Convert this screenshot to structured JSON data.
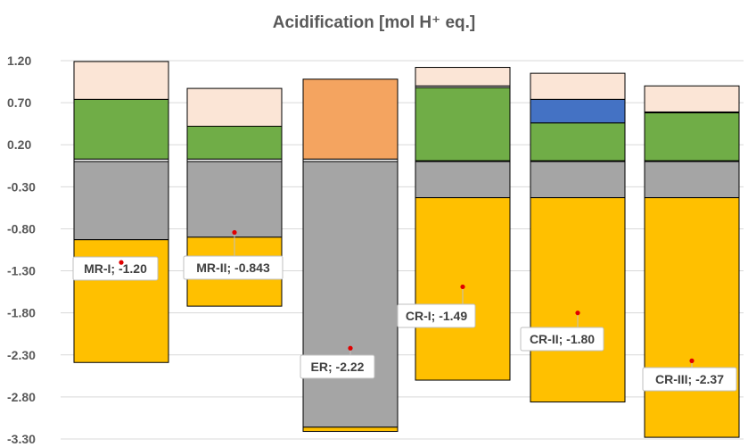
{
  "chart_data": {
    "type": "bar",
    "subtype": "stacked",
    "title": "Acidification [mol H⁺ eq.]",
    "xlabel": "",
    "ylabel": "",
    "ylim": [
      -3.3,
      1.2
    ],
    "yticks": [
      "1.20",
      "0.70",
      "0.20",
      "-0.30",
      "-0.80",
      "-1.30",
      "-1.80",
      "-2.30",
      "-2.80",
      "-3.30"
    ],
    "ytick_values": [
      1.2,
      0.7,
      0.2,
      -0.3,
      -0.8,
      -1.3,
      -1.8,
      -2.3,
      -2.8,
      -3.3
    ],
    "grid": true,
    "legend": "none",
    "categories": [
      "MR-I",
      "MR-II",
      "ER",
      "CR-I",
      "CR-II",
      "CR-III"
    ],
    "bars": [
      {
        "category": "MR-I",
        "total_label": "MR-I; -1.20",
        "segments": [
          {
            "y0": 0.0,
            "y1": 0.03,
            "color": "#ffffff"
          },
          {
            "y0": 0.03,
            "y1": 0.74,
            "color": "#70ad47"
          },
          {
            "y0": 0.74,
            "y1": 1.19,
            "color": "#fbe5d6"
          },
          {
            "y0": 0.0,
            "y1": -0.93,
            "color": "#a5a5a5"
          },
          {
            "y0": -0.93,
            "y1": -2.39,
            "color": "#ffc000"
          }
        ]
      },
      {
        "category": "MR-II",
        "total_label": "MR-II; -0.843",
        "segments": [
          {
            "y0": 0.0,
            "y1": 0.03,
            "color": "#ffffff"
          },
          {
            "y0": 0.03,
            "y1": 0.42,
            "color": "#70ad47"
          },
          {
            "y0": 0.42,
            "y1": 0.87,
            "color": "#fbe5d6"
          },
          {
            "y0": 0.0,
            "y1": -0.9,
            "color": "#a5a5a5"
          },
          {
            "y0": -0.9,
            "y1": -1.72,
            "color": "#ffc000"
          }
        ]
      },
      {
        "category": "ER",
        "total_label": "ER; -2.22",
        "segments": [
          {
            "y0": 0.0,
            "y1": 0.03,
            "color": "#ffffff"
          },
          {
            "y0": 0.03,
            "y1": 0.98,
            "color": "#f4a460"
          },
          {
            "y0": 0.0,
            "y1": -3.16,
            "color": "#a5a5a5"
          },
          {
            "y0": -3.16,
            "y1": -3.21,
            "color": "#ffc000"
          }
        ]
      },
      {
        "category": "CR-I",
        "total_label": "CR-I; -1.49",
        "segments": [
          {
            "y0": 0.0,
            "y1": 0.01,
            "color": "#ffffff"
          },
          {
            "y0": 0.01,
            "y1": 0.88,
            "color": "#70ad47"
          },
          {
            "y0": 0.88,
            "y1": 0.9,
            "color": "#ffffff"
          },
          {
            "y0": 0.9,
            "y1": 1.12,
            "color": "#fbe5d6"
          },
          {
            "y0": 0.0,
            "y1": -0.43,
            "color": "#a5a5a5"
          },
          {
            "y0": -0.43,
            "y1": -2.6,
            "color": "#ffc000"
          }
        ]
      },
      {
        "category": "CR-II",
        "total_label": "CR-II; -1.80",
        "segments": [
          {
            "y0": 0.0,
            "y1": 0.01,
            "color": "#ffffff"
          },
          {
            "y0": 0.01,
            "y1": 0.46,
            "color": "#70ad47"
          },
          {
            "y0": 0.46,
            "y1": 0.74,
            "color": "#4472c4"
          },
          {
            "y0": 0.74,
            "y1": 1.05,
            "color": "#fbe5d6"
          },
          {
            "y0": 0.0,
            "y1": -0.43,
            "color": "#a5a5a5"
          },
          {
            "y0": -0.43,
            "y1": -2.86,
            "color": "#ffc000"
          }
        ]
      },
      {
        "category": "CR-III",
        "total_label": "CR-III; -2.37",
        "segments": [
          {
            "y0": 0.0,
            "y1": 0.01,
            "color": "#ffffff"
          },
          {
            "y0": 0.01,
            "y1": 0.58,
            "color": "#70ad47"
          },
          {
            "y0": 0.58,
            "y1": 0.59,
            "color": "#ffffff"
          },
          {
            "y0": 0.59,
            "y1": 0.9,
            "color": "#fbe5d6"
          },
          {
            "y0": 0.0,
            "y1": -0.43,
            "color": "#a5a5a5"
          },
          {
            "y0": -0.43,
            "y1": -3.28,
            "color": "#ffc000"
          }
        ]
      }
    ],
    "net_points": [
      {
        "category": "MR-I",
        "value": -1.2
      },
      {
        "category": "MR-II",
        "value": -0.843
      },
      {
        "category": "ER",
        "value": -2.22
      },
      {
        "category": "CR-I",
        "value": -1.49
      },
      {
        "category": "CR-II",
        "value": -1.8
      },
      {
        "category": "CR-III",
        "value": -2.37
      }
    ],
    "colors": {
      "grid": "#d9d9d9",
      "tick_text": "#595959",
      "net_point": "#e00000",
      "callout_border": "#bfbfbf"
    }
  }
}
